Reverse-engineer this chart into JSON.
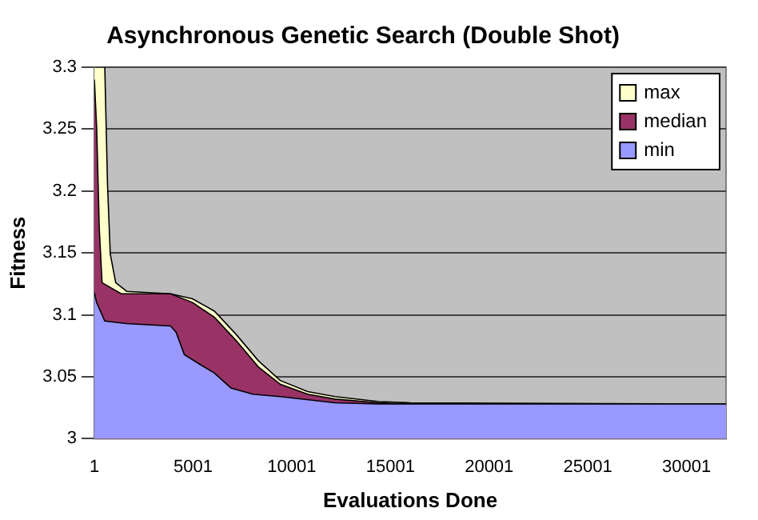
{
  "chart_data": {
    "type": "area",
    "title": "Asynchronous Genetic Search (Double Shot)",
    "xlabel": "Evaluations Done",
    "ylabel": "Fitness",
    "xlim": [
      1,
      32001
    ],
    "xticks": [
      1,
      5001,
      10001,
      15001,
      20001,
      25001,
      30001
    ],
    "ylim": [
      3,
      3.3
    ],
    "yticks": [
      3,
      3.05,
      3.1,
      3.15,
      3.2,
      3.25,
      3.3
    ],
    "grid": "y",
    "legend": "top right",
    "series": [
      {
        "name": "max",
        "color": "#ffffcc",
        "x": [
          1,
          529,
          668,
          807,
          1084,
          1640,
          3862,
          4974,
          6085,
          7196,
          8307,
          9418,
          10807,
          12196,
          14419,
          16000,
          32001
        ],
        "values": [
          3.3,
          3.3,
          3.205,
          3.149,
          3.126,
          3.119,
          3.117,
          3.113,
          3.103,
          3.084,
          3.063,
          3.047,
          3.038,
          3.034,
          3.03,
          3.029,
          3.028
        ]
      },
      {
        "name": "median",
        "color": "#993366",
        "x": [
          1,
          120,
          250,
          390,
          1362,
          3862,
          4974,
          6085,
          7196,
          8307,
          9418,
          10807,
          12196,
          14419,
          16000,
          32001
        ],
        "values": [
          3.29,
          3.25,
          3.17,
          3.126,
          3.117,
          3.117,
          3.11,
          3.098,
          3.079,
          3.058,
          3.044,
          3.036,
          3.032,
          3.029,
          3.028,
          3.028
        ]
      },
      {
        "name": "min",
        "color": "#9999ff",
        "x": [
          1,
          112,
          529,
          1640,
          3862,
          4140,
          4557,
          5251,
          6085,
          6918,
          8029,
          9418,
          12196,
          14419,
          32001
        ],
        "values": [
          3.118,
          3.11,
          3.095,
          3.093,
          3.091,
          3.086,
          3.068,
          3.061,
          3.053,
          3.041,
          3.036,
          3.034,
          3.029,
          3.028,
          3.028
        ]
      }
    ]
  }
}
